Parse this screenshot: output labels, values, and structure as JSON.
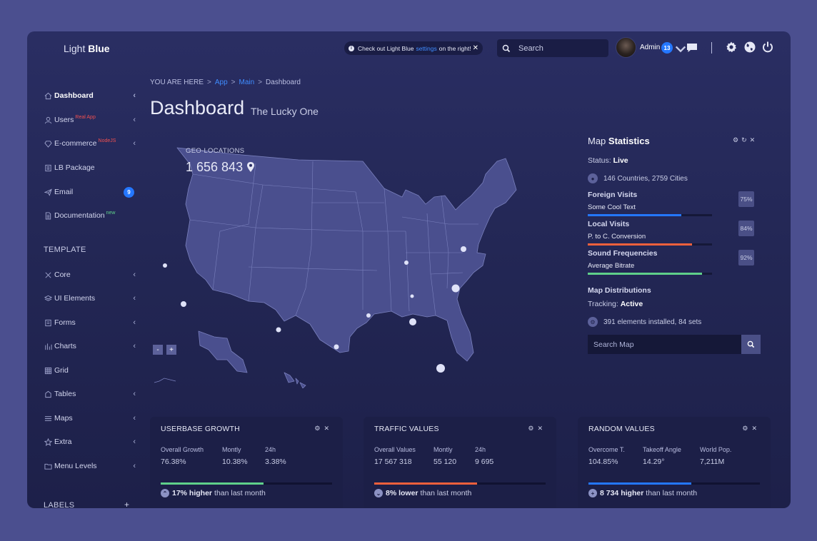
{
  "brand": {
    "light": "Light",
    "bold": "Blue"
  },
  "notice": {
    "pre": "Check out Light Blue",
    "link": "settings",
    "post": "on the right!",
    "close": "✕"
  },
  "search": {
    "placeholder": "Search"
  },
  "user": {
    "name": "Admin",
    "badge": "13"
  },
  "sidebar": {
    "items": [
      {
        "label": "Dashboard",
        "icon": "home-icon",
        "chevron": true
      },
      {
        "label": "Users",
        "icon": "user-icon",
        "sup": "Real App",
        "chevron": true
      },
      {
        "label": "E-commerce",
        "icon": "diamond-icon",
        "sup": "NodeJS",
        "chevron": true
      },
      {
        "label": "LB Package",
        "icon": "package-icon"
      },
      {
        "label": "Email",
        "icon": "paper-plane-icon",
        "badge": "9"
      },
      {
        "label": "Documentation",
        "icon": "document-icon",
        "sup": "new"
      }
    ],
    "template_heading": "TEMPLATE",
    "template_items": [
      {
        "label": "Core",
        "icon": "tools-icon"
      },
      {
        "label": "UI Elements",
        "icon": "layers-icon"
      },
      {
        "label": "Forms",
        "icon": "form-icon"
      },
      {
        "label": "Charts",
        "icon": "chart-icon"
      },
      {
        "label": "Grid",
        "icon": "grid-icon"
      },
      {
        "label": "Tables",
        "icon": "table-icon"
      },
      {
        "label": "Maps",
        "icon": "map-icon"
      },
      {
        "label": "Extra",
        "icon": "star-icon"
      },
      {
        "label": "Menu Levels",
        "icon": "folder-icon"
      }
    ],
    "labels_heading": "LABELS",
    "labels_add": "+"
  },
  "breadcrumb": {
    "prefix": "YOU ARE HERE",
    "items": [
      "App",
      "Main"
    ],
    "current": "Dashboard",
    "sep": ">"
  },
  "page": {
    "title": "Dashboard",
    "subtitle": "The Lucky One"
  },
  "geo": {
    "label": "GEO-LOCATIONS",
    "value": "1 656 843"
  },
  "map_zoom": {
    "out": "-",
    "in": "+"
  },
  "map_stats": {
    "title_light": "Map",
    "title_bold": "Statistics",
    "status_label": "Status:",
    "status_value": "Live",
    "countries": "146 Countries, 2759 Cities",
    "stats": [
      {
        "name": "Foreign Visits",
        "desc": "Some Cool Text",
        "pct": "75%",
        "value": 0.75,
        "color": "#2477ff"
      },
      {
        "name": "Local Visits",
        "desc": "P. to C. Conversion",
        "pct": "84%",
        "value": 0.84,
        "color": "#f0603c"
      },
      {
        "name": "Sound Frequencies",
        "desc": "Average Bitrate",
        "pct": "92%",
        "value": 0.92,
        "color": "#5fd08a"
      }
    ],
    "distributions": "Map Distributions",
    "tracking_label": "Tracking:",
    "tracking_value": "Active",
    "elements": "391 elements installed, 84 sets",
    "search_placeholder": "Search Map"
  },
  "cards": [
    {
      "title": "USERBASE GROWTH",
      "labels": [
        "Overall Growth",
        "Montly",
        "24h"
      ],
      "values": [
        "76.38%",
        "10.38%",
        "3.38%"
      ],
      "progress": 0.6,
      "color": "#5fd08a",
      "foot_bold": "17% higher",
      "foot_rest": "than last month",
      "arrow": "up"
    },
    {
      "title": "TRAFFIC VALUES",
      "labels": [
        "Overall Values",
        "Montly",
        "24h"
      ],
      "values": [
        "17 567 318",
        "55 120",
        "9 695"
      ],
      "progress": 0.6,
      "color": "#f0603c",
      "foot_bold": "8% lower",
      "foot_rest": "than last month",
      "arrow": "down"
    },
    {
      "title": "RANDOM VALUES",
      "labels": [
        "Overcome T.",
        "Takeoff Angle",
        "World Pop."
      ],
      "values": [
        "104.85%",
        "14.29°",
        "7,211M"
      ],
      "progress": 0.6,
      "color": "#2477ff",
      "foot_bold": "8 734 higher",
      "foot_rest": "than last month",
      "arrow": "plus"
    }
  ]
}
